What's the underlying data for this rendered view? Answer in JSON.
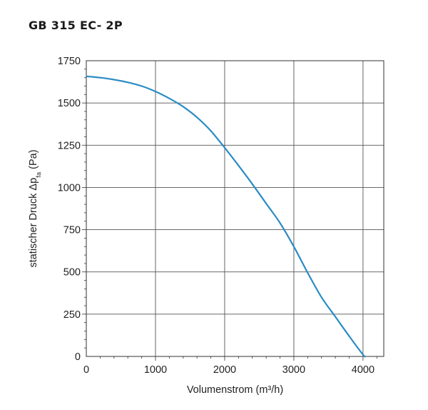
{
  "chart_data": {
    "type": "line",
    "title": "GB 315 EC- 2P",
    "xlabel": "Volumenstrom (m³/h)",
    "ylabel": "statischer Druck Δp",
    "ylabel_sub": "fa",
    "ylabel_unit": " (Pa)",
    "xlim": [
      0,
      4300
    ],
    "ylim": [
      0,
      1750
    ],
    "x_ticks": [
      0,
      1000,
      2000,
      3000,
      4000
    ],
    "x_tick_labels": [
      "0",
      "1000",
      "2000",
      "3000",
      "4000"
    ],
    "y_ticks": [
      0,
      250,
      500,
      750,
      1000,
      1250,
      1500,
      1750
    ],
    "y_tick_labels": [
      "0",
      "250",
      "500",
      "750",
      "1000",
      "1250",
      "1500",
      "1750"
    ],
    "grid": true,
    "line_color": "#2a8cc4",
    "series": [
      {
        "x": [
          0,
          200,
          400,
          600,
          800,
          1000,
          1200,
          1400,
          1600,
          1800,
          2000,
          2200,
          2400,
          2600,
          2800,
          3000,
          3200,
          3400,
          3600,
          3800,
          4000,
          4030
        ],
        "values": [
          1658,
          1650,
          1638,
          1622,
          1600,
          1568,
          1527,
          1478,
          1415,
          1335,
          1235,
          1130,
          1020,
          905,
          790,
          650,
          495,
          350,
          235,
          120,
          10,
          0
        ]
      }
    ]
  }
}
